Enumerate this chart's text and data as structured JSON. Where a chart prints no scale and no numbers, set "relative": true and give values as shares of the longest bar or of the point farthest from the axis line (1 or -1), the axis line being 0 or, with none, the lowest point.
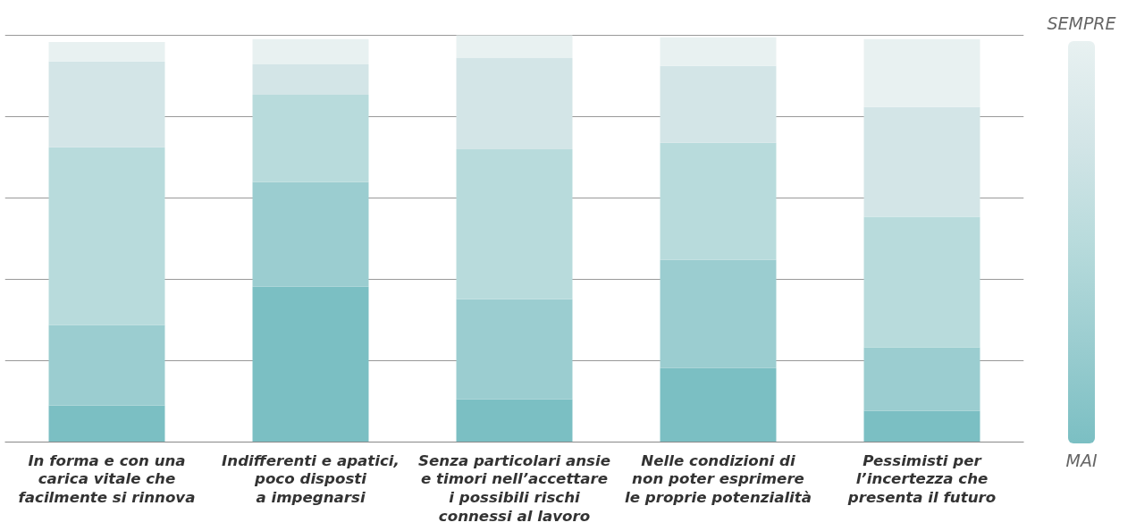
{
  "chart_data": {
    "type": "bar",
    "stacked": true,
    "relative": true,
    "grid": "y",
    "categories": [
      "In forma e con una\ncarica vitale che\nfacilmente si rinnova",
      "Indifferenti e apatici,\npoco disposti\na impegnarsi",
      "Senza particolari ansie\ne timori nell’accettare\ni possibili rischi\nconnessi al lavoro",
      "Nelle condizioni di\nnon poter esprimere\nle proprie potenzialità",
      "Pessimisti per\nl’incertezza che\npresenta il futuro"
    ],
    "series": [
      {
        "color": "#7bbfc3",
        "values": [
          0.09,
          0.382,
          0.105,
          0.182,
          0.077
        ]
      },
      {
        "color": "#9bcdd0",
        "values": [
          0.198,
          0.257,
          0.246,
          0.266,
          0.156
        ]
      },
      {
        "color": "#b8dbdc",
        "values": [
          0.437,
          0.215,
          0.369,
          0.288,
          0.321
        ]
      },
      {
        "color": "#d3e5e7",
        "values": [
          0.211,
          0.075,
          0.224,
          0.189,
          0.27
        ]
      },
      {
        "color": "#e8f1f1",
        "values": [
          0.048,
          0.062,
          0.056,
          0.07,
          0.167
        ]
      }
    ],
    "annotations": [
      "SEMPRE",
      "MAI"
    ]
  }
}
